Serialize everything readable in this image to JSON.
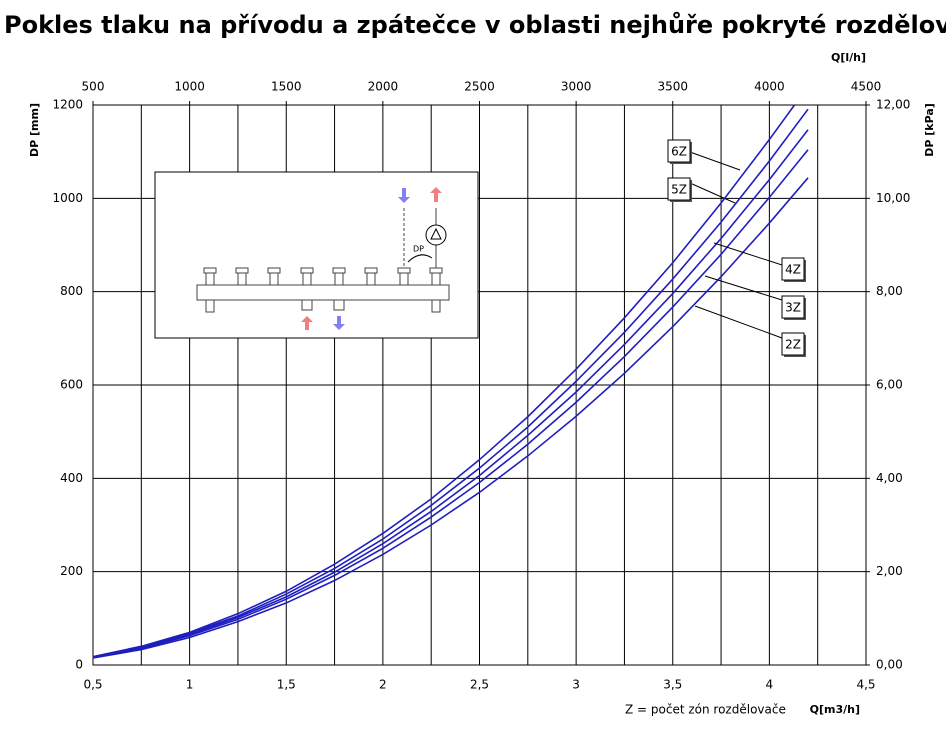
{
  "chart_data": {
    "type": "line",
    "title": "Pokles tlaku na přívodu a zpátečce v oblasti nejhůře pokryté rozdělovačem",
    "y_label": "DP [mm]",
    "y2_label": "DP [kPa]",
    "x_label": "Q[m3/h]",
    "x2_label": "Q[l/h]",
    "note": "Z = počet zón rozdělovače",
    "inset_label": "DP",
    "xlim": [
      0.5,
      4.5
    ],
    "xticks": [
      {
        "value": 0.5,
        "label": "0,5"
      },
      1,
      {
        "value": 1.5,
        "label": "1,5"
      },
      2,
      {
        "value": 2.5,
        "label": "2,5"
      },
      3,
      {
        "value": 3.5,
        "label": "3,5"
      },
      4,
      {
        "value": 4.5,
        "label": "4,5"
      }
    ],
    "xminor": [
      0.75,
      1.25,
      1.75,
      2.25,
      2.75,
      3.25,
      3.75,
      4.25
    ],
    "x2lim": [
      500,
      4500
    ],
    "x2ticks": [
      500,
      1000,
      1500,
      2000,
      2500,
      3000,
      3500,
      4000,
      4500
    ],
    "ylim": [
      0,
      1200
    ],
    "yticks": [
      0,
      200,
      400,
      600,
      800,
      1000,
      1200
    ],
    "y2lim": [
      0,
      12
    ],
    "y2ticks": [
      {
        "value": 0,
        "label": "0,00"
      },
      {
        "value": 2,
        "label": "2,00"
      },
      {
        "value": 4,
        "label": "4,00"
      },
      {
        "value": 6,
        "label": "6,00"
      },
      {
        "value": 8,
        "label": "8,00"
      },
      {
        "value": 10,
        "label": "10,00"
      },
      {
        "value": 12,
        "label": "12,00"
      }
    ],
    "grid": true,
    "color": "#1f1fbf",
    "series": [
      {
        "name": "2Z",
        "x": [
          0.5,
          0.75,
          1,
          1.25,
          1.5,
          1.75,
          2,
          2.25,
          2.5,
          2.75,
          3,
          3.25,
          3.5,
          3.75,
          4,
          4.2
        ],
        "values": [
          15,
          33,
          59,
          93,
          133,
          181,
          237,
          300,
          370,
          448,
          533,
          625,
          725,
          832,
          947,
          1044
        ]
      },
      {
        "name": "3Z",
        "x": [
          0.5,
          0.75,
          1,
          1.25,
          1.5,
          1.75,
          2,
          2.25,
          2.5,
          2.75,
          3,
          3.25,
          3.5,
          3.75,
          4,
          4.2
        ],
        "values": [
          16,
          35,
          63,
          98,
          141,
          192,
          250,
          317,
          391,
          473,
          563,
          661,
          767,
          880,
          1002,
          1104
        ]
      },
      {
        "name": "4Z",
        "x": [
          0.5,
          0.75,
          1,
          1.25,
          1.5,
          1.75,
          2,
          2.25,
          2.5,
          2.75,
          3,
          3.25,
          3.5,
          3.75,
          4,
          4.2
        ],
        "values": [
          16,
          37,
          65,
          102,
          146,
          199,
          260,
          329,
          406,
          492,
          585,
          687,
          796,
          914,
          1040,
          1147
        ]
      },
      {
        "name": "5Z",
        "x": [
          0.5,
          0.75,
          1,
          1.25,
          1.5,
          1.75,
          2,
          2.25,
          2.5,
          2.75,
          3,
          3.25,
          3.5,
          3.75,
          4,
          4.2
        ],
        "values": [
          17,
          38,
          68,
          105,
          152,
          207,
          270,
          342,
          422,
          510,
          608,
          713,
          827,
          949,
          1080,
          1191
        ]
      },
      {
        "name": "6Z",
        "x": [
          0.5,
          0.75,
          1,
          1.25,
          1.5,
          1.75,
          2,
          2.25,
          2.5,
          2.75,
          3,
          3.25,
          3.5,
          3.75,
          4,
          4.13
        ],
        "values": [
          18,
          40,
          70,
          110,
          158,
          216,
          282,
          356,
          440,
          532,
          634,
          744,
          862,
          990,
          1126,
          1200
        ]
      }
    ]
  }
}
